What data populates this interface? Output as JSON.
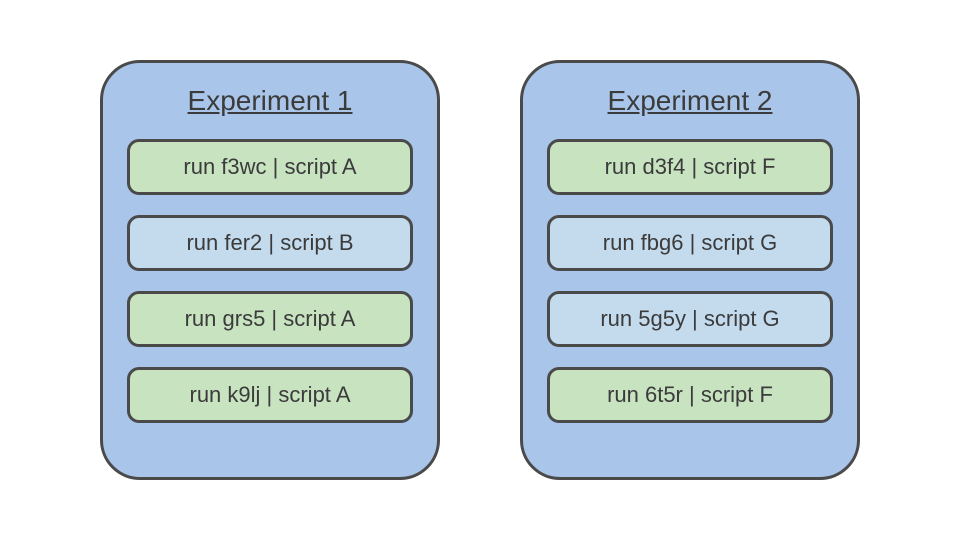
{
  "colors": {
    "experiment_bg": "#a9c6ea",
    "experiment_border": "#4a4a4a",
    "run_green_bg": "#c8e3c0",
    "run_blue_bg": "#c4dbee",
    "run_border": "#4a4a4a",
    "text": "#3b3b3b"
  },
  "fontsize": {
    "title": 28,
    "run": 22
  },
  "experiments": [
    {
      "title": "Experiment 1",
      "runs": [
        {
          "label": "run f3wc | script A",
          "group": "green"
        },
        {
          "label": "run fer2 | script B",
          "group": "blue"
        },
        {
          "label": "run grs5 | script A",
          "group": "green"
        },
        {
          "label": "run k9lj | script A",
          "group": "green"
        }
      ]
    },
    {
      "title": "Experiment 2",
      "runs": [
        {
          "label": "run d3f4 | script F",
          "group": "green"
        },
        {
          "label": "run fbg6 | script G",
          "group": "blue"
        },
        {
          "label": "run 5g5y | script G",
          "group": "blue"
        },
        {
          "label": "run 6t5r | script F",
          "group": "green"
        }
      ]
    }
  ]
}
